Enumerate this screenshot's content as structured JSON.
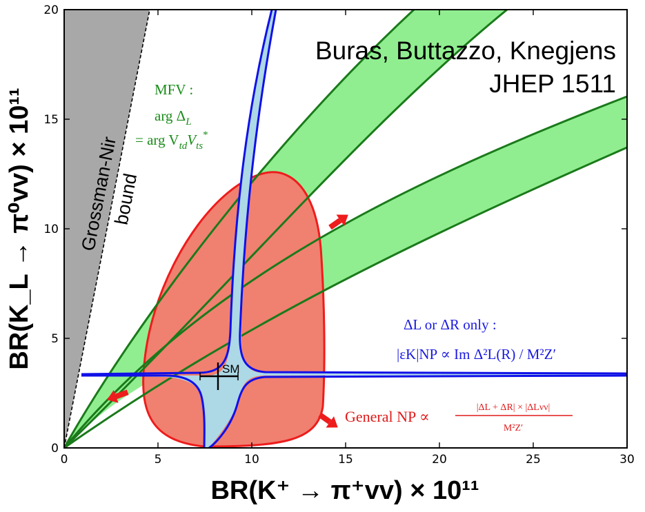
{
  "chart_data": {
    "type": "region-plot",
    "xlabel": "BR(K⁺ → π⁺vv) × 10¹¹",
    "ylabel": "BR(K_L → π⁰vv) × 10¹¹",
    "xlim": [
      0,
      30
    ],
    "ylim": [
      0,
      20
    ],
    "x_ticks": [
      "0",
      "5",
      "10",
      "15",
      "20",
      "25",
      "30"
    ],
    "y_ticks": [
      "0",
      "5",
      "10",
      "15",
      "20"
    ],
    "grid": false,
    "citation": [
      "Buras, Buttazzo, Knegjens",
      "JHEP 1511"
    ],
    "gn_bound": {
      "label": [
        "Grossman-Nir",
        "bound"
      ],
      "line": [
        [
          0,
          0
        ],
        [
          4.6,
          20
        ]
      ]
    },
    "mfv_band": {
      "label": [
        "MFV :",
        "arg Δ",
        "L",
        "= arg V",
        "td",
        "V",
        "ts",
        "*"
      ],
      "color": "#90ee90",
      "inner_band_edges": {
        "left": [
          [
            0.2,
            0.4
          ],
          [
            10,
            10
          ],
          [
            19.2,
            20
          ]
        ],
        "right": [
          [
            1.5,
            0.25
          ],
          [
            12,
            10
          ],
          [
            21.5,
            20
          ]
        ]
      },
      "outer_band_edges": {
        "left": [
          [
            0.4,
            0.1
          ],
          [
            20,
            10.5
          ],
          [
            30,
            16
          ]
        ],
        "right": [
          [
            0.8,
            0.1
          ],
          [
            24,
            10
          ],
          [
            30,
            13.6
          ]
        ]
      }
    },
    "general_np_region": {
      "label": "General NP ∝",
      "fraction_numerator": "|ΔL + ΔR| × |ΔLνν|",
      "fraction_denominator": "M²Z′",
      "color": "#f08070",
      "boundary": [
        [
          7.5,
          0.2
        ],
        [
          4.5,
          2
        ],
        [
          5.5,
          7
        ],
        [
          8,
          10.5
        ],
        [
          10.5,
          12.6
        ],
        [
          13,
          11
        ],
        [
          13.8,
          7
        ],
        [
          13.6,
          2
        ],
        [
          9.5,
          0.2
        ]
      ]
    },
    "delta_lr_region": {
      "label": "ΔL or ΔR only :",
      "label2": "|εK|NP ∝ Im Δ²L(R) / M²Z′",
      "color": "#add8e6",
      "horizontal_arm": [
        [
          0.8,
          3.35
        ],
        [
          30,
          3.35
        ]
      ],
      "vertical_arm": [
        [
          7.5,
          0
        ],
        [
          11.3,
          20
        ]
      ]
    },
    "sm_point": {
      "label": "SM",
      "x": 8.2,
      "y": 3.2,
      "x_err": 1.0,
      "y_err": 0.6
    }
  },
  "colors": {
    "axes": "#000000",
    "green_line": "#1a7a1a",
    "green_text": "#1a8c1a",
    "blue_line": "#1010e8",
    "blue_text": "#1a1ae0",
    "red_line": "#ee1c1c",
    "red_text": "#e01a1a",
    "gray_region": "#a8a8a8"
  }
}
